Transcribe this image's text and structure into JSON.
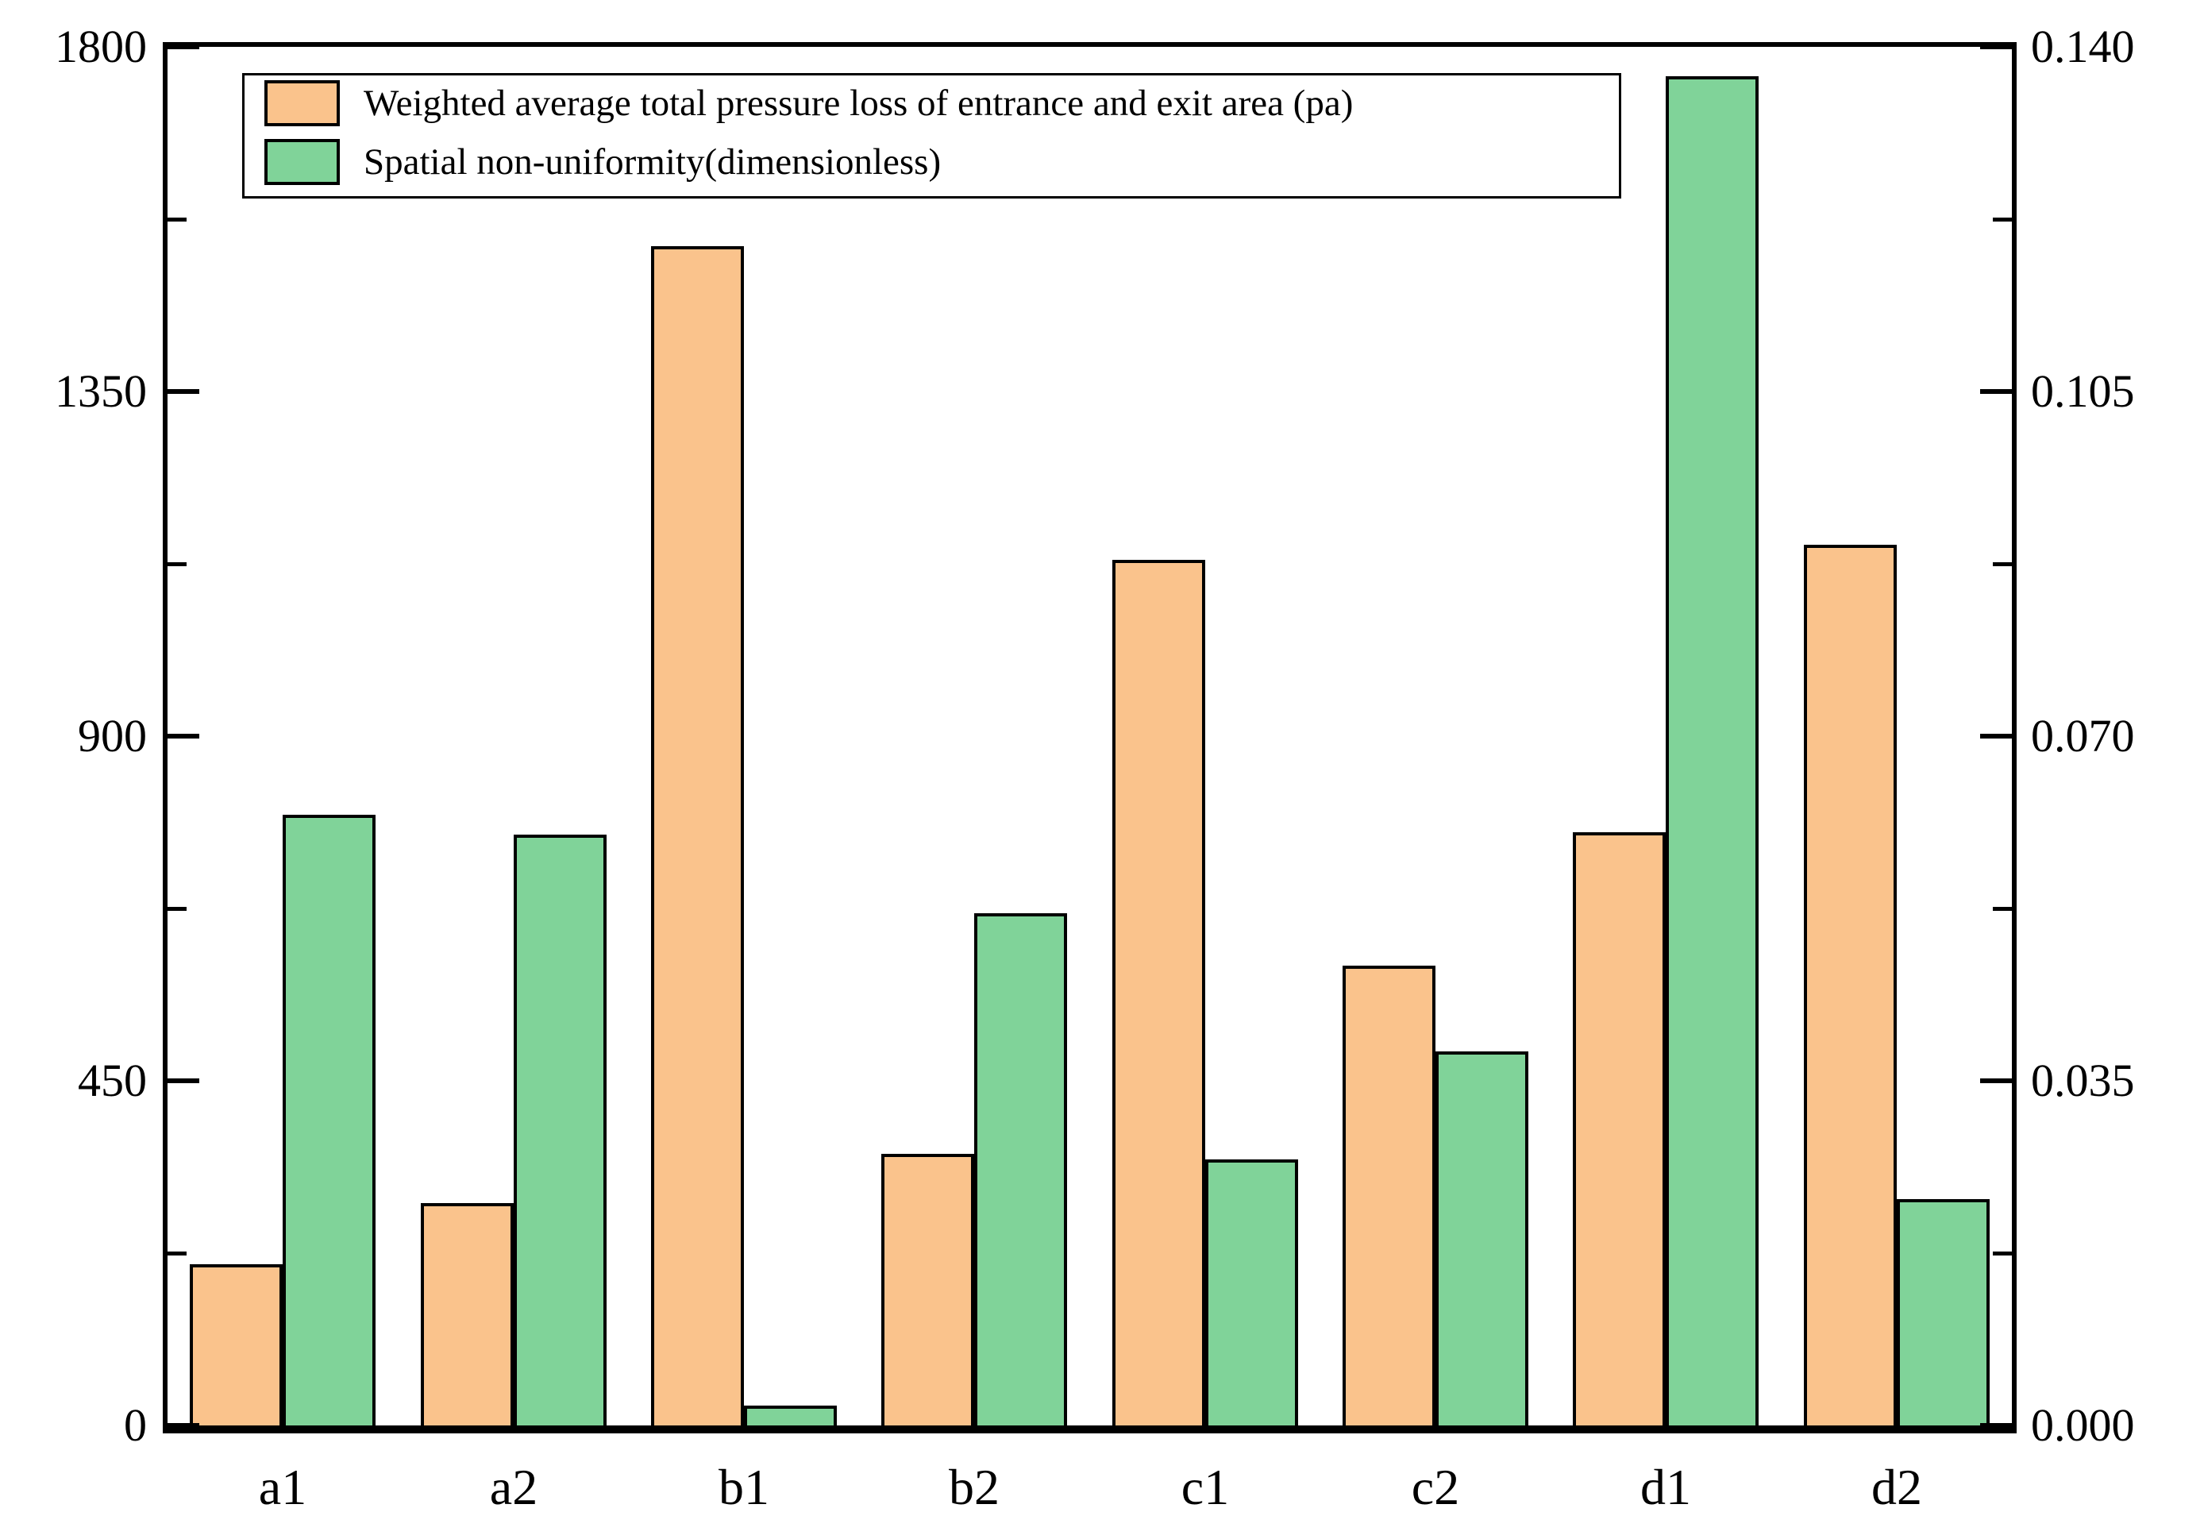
{
  "chart_data": {
    "type": "bar",
    "title": "",
    "categories": [
      "a1",
      "a2",
      "b1",
      "b2",
      "c1",
      "c2",
      "d1",
      "d2"
    ],
    "series": [
      {
        "name": "Weighted average total pressure loss of entrance and exit area (pa)",
        "axis": "left",
        "color": "#FAC38C",
        "values": [
          210,
          290,
          1540,
          355,
          1130,
          600,
          775,
          1150
        ]
      },
      {
        "name": "Spatial non-uniformity(dimensionless)",
        "axis": "right",
        "color": "#80D399",
        "values": [
          0.062,
          0.06,
          0.002,
          0.052,
          0.027,
          0.038,
          0.137,
          0.023
        ]
      }
    ],
    "left_axis": {
      "min": 0,
      "max": 1800,
      "tick_labels": [
        "0",
        "450",
        "900",
        "1350",
        "1800"
      ],
      "tick_values": [
        0,
        450,
        900,
        1350,
        1800
      ],
      "minor_tick_values": [
        225,
        675,
        1125,
        1575
      ]
    },
    "right_axis": {
      "min": 0,
      "max": 0.14,
      "tick_labels": [
        "0.000",
        "0.035",
        "0.070",
        "0.105",
        "0.140"
      ],
      "tick_values": [
        0,
        0.035,
        0.07,
        0.105,
        0.14
      ],
      "minor_tick_values": [
        0.0175,
        0.0525,
        0.0875,
        0.1225
      ]
    },
    "legend_position": "top-left",
    "grid": false,
    "bar_border_color": "#000000",
    "frame_color": "#000000"
  }
}
